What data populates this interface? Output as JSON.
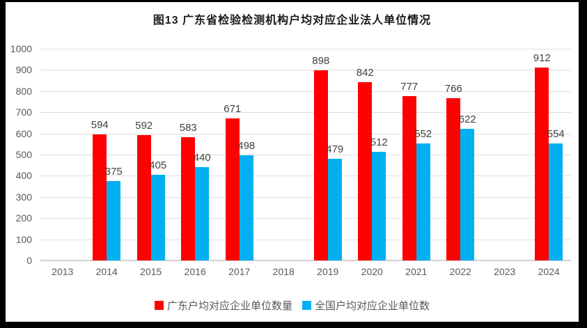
{
  "title": "图13 广东省检验检测机构户均对应企业法人单位情况",
  "chart_data": {
    "type": "bar",
    "title": "图13 广东省检验检测机构户均对应企业法人单位情况",
    "categories": [
      "2013",
      "2014",
      "2015",
      "2016",
      "2017",
      "2018",
      "2019",
      "2020",
      "2021",
      "2022",
      "2023",
      "2024"
    ],
    "series": [
      {
        "name": "广东户均对应企业单位数量",
        "color": "#ff0000",
        "values": [
          null,
          594,
          592,
          583,
          671,
          null,
          898,
          842,
          777,
          766,
          null,
          912
        ]
      },
      {
        "name": "全国户均对应企业单位数",
        "color": "#00b0f0",
        "values": [
          null,
          375,
          405,
          440,
          498,
          null,
          479,
          512,
          552,
          622,
          null,
          554
        ]
      }
    ],
    "ylim": [
      0,
      1000
    ],
    "ytick_step": 100,
    "ytick_labels": [
      "0",
      "100",
      "200",
      "300",
      "400",
      "500",
      "600",
      "700",
      "800",
      "900",
      "1000"
    ],
    "grid": "horizontal",
    "legend_position": "bottom",
    "data_labels": true
  },
  "colors": {
    "series1": "#ff0000",
    "series2": "#00b0f0",
    "gridline": "#dedede",
    "axis_line": "#d2d2d2",
    "axis_text": "#595959",
    "label_text": "#404040",
    "frame": "#000000",
    "plot_background": "#ffffff"
  }
}
